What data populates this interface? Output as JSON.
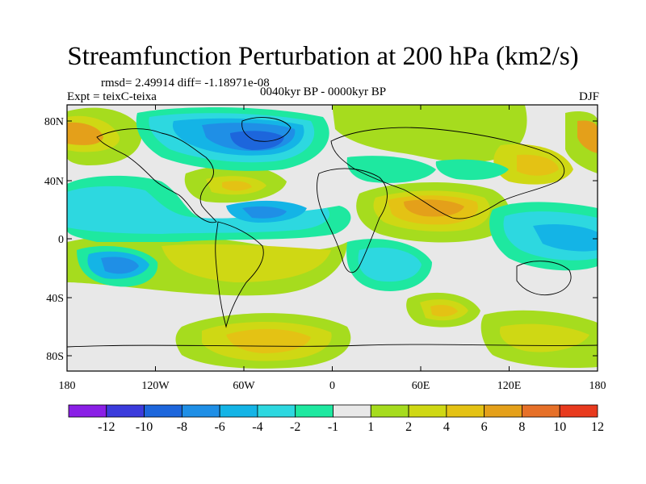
{
  "title": "Streamfunction Perturbation at 200 hPa (km2/s)",
  "stats": {
    "rmsd_text": "rmsd= 2.49914 diff= -1.18971e-08"
  },
  "experiment": "Expt = teixC-teixa",
  "period": "0040kyr BP - 0000kyr BP",
  "season": "DJF",
  "axes": {
    "lat_ticks": [
      "80N",
      "40N",
      "0",
      "40S",
      "80S"
    ],
    "lon_ticks": [
      "180",
      "120W",
      "60W",
      "0",
      "60E",
      "120E",
      "180"
    ]
  },
  "colorbar": {
    "labels": [
      "-12",
      "-10",
      "-8",
      "-6",
      "-4",
      "-2",
      "-1",
      "1",
      "2",
      "4",
      "6",
      "8",
      "10",
      "12"
    ],
    "colors": [
      "#8a1fe6",
      "#3b3bdc",
      "#1d66dc",
      "#1f8fe6",
      "#14b4e6",
      "#2dd8e0",
      "#1ee8a0",
      "#e8e8e8",
      "#a6dc1e",
      "#cfd814",
      "#e4c214",
      "#e4a01a",
      "#e67028",
      "#e83a1e"
    ]
  },
  "palette": {
    "n12": "#8a1fe6",
    "n10": "#3b3bdc",
    "n8": "#1d66dc",
    "n6": "#1f8fe6",
    "n4": "#14b4e6",
    "n2": "#2dd8e0",
    "n1": "#1ee8a0",
    "zero": "#e8e8e8",
    "p1": "#a6dc1e",
    "p2": "#cfd814",
    "p4": "#e4c214",
    "p6": "#e4a01a",
    "p8": "#e67028",
    "p10": "#e83a1e"
  }
}
